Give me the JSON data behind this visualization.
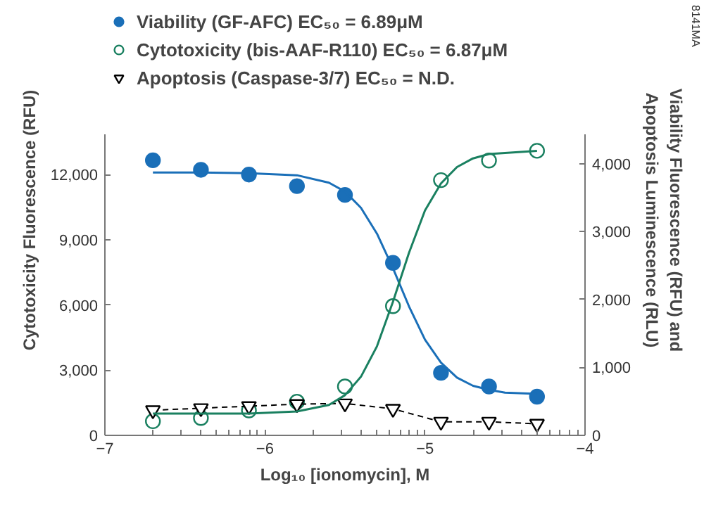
{
  "chart_data": {
    "type": "scatter",
    "xlabel": "Log₁₀ [ionomycin], M",
    "ylabel": "Cytotoxicity Fluorescence (RFU)",
    "y2label": "Viability Fluorescence (RFU) and\nApoptosis Luminescence (RLU)",
    "annotations": [
      "8141MA"
    ],
    "xlim": [
      -7,
      -4
    ],
    "xticks": [
      {
        "value": -7,
        "label": "−7"
      },
      {
        "value": -6.699,
        "label": null
      },
      {
        "value": -6.523,
        "label": null
      },
      {
        "value": -6.398,
        "label": null
      },
      {
        "value": -6.301,
        "label": null
      },
      {
        "value": -6.222,
        "label": null
      },
      {
        "value": -6.155,
        "label": null
      },
      {
        "value": -6.097,
        "label": null
      },
      {
        "value": -6.046,
        "label": null
      },
      {
        "value": -6,
        "label": "−6"
      },
      {
        "value": -5.699,
        "label": null
      },
      {
        "value": -5.523,
        "label": null
      },
      {
        "value": -5.398,
        "label": null
      },
      {
        "value": -5.301,
        "label": null
      },
      {
        "value": -5.222,
        "label": null
      },
      {
        "value": -5.155,
        "label": null
      },
      {
        "value": -5.097,
        "label": null
      },
      {
        "value": -5.046,
        "label": null
      },
      {
        "value": -5,
        "label": "−5"
      },
      {
        "value": -4.699,
        "label": null
      },
      {
        "value": -4.523,
        "label": null
      },
      {
        "value": -4.398,
        "label": null
      },
      {
        "value": -4.301,
        "label": null
      },
      {
        "value": -4.222,
        "label": null
      },
      {
        "value": -4.155,
        "label": null
      },
      {
        "value": -4.097,
        "label": null
      },
      {
        "value": -4.046,
        "label": null
      },
      {
        "value": -4,
        "label": "−4"
      }
    ],
    "ylim": [
      0,
      13850
    ],
    "yticks": [
      0,
      {
        "value": 3000,
        "label": "3,000"
      },
      {
        "value": 6000,
        "label": "6,000"
      },
      {
        "value": 9000,
        "label": "9,000"
      },
      {
        "value": 12000,
        "label": "12,000"
      }
    ],
    "y2lim": [
      0,
      4430
    ],
    "y2ticks": [
      0,
      {
        "value": 1000,
        "label": "1,000"
      },
      {
        "value": 2000,
        "label": "2,000"
      },
      {
        "value": 3000,
        "label": "3,000"
      },
      {
        "value": 4000,
        "label": "4,000"
      }
    ],
    "legend": "top left",
    "grid": false,
    "series": [
      {
        "name": "Viability (GF-AFC) EC₅₀ = 6.89μM",
        "marker": "circle",
        "color": "#1a6fb8",
        "axis": "y2",
        "x": [
          -6.7,
          -6.4,
          -6.1,
          -5.8,
          -5.5,
          -5.2,
          -4.9,
          -4.6,
          -4.3
        ],
        "values": [
          4050,
          3910,
          3840,
          3670,
          3540,
          2540,
          920,
          720,
          570
        ]
      },
      {
        "name": "Cytotoxicity (bis-AAF-R110) EC₅₀ = 6.87μM",
        "marker": "circle",
        "color": "#1a8060",
        "x": [
          -6.7,
          -6.4,
          -6.1,
          -5.8,
          -5.5,
          -5.2,
          -4.9,
          -4.6,
          -4.3
        ],
        "values": [
          650,
          800,
          1150,
          1550,
          2250,
          5950,
          11750,
          12650,
          13100
        ]
      },
      {
        "name": "Apoptosis (Caspase-3/7) EC₅₀ = N.D.",
        "type": "line",
        "marker": "triangle",
        "line_style": "dashed",
        "color": "#000000",
        "axis": "y2",
        "x": [
          -6.7,
          -6.4,
          -6.1,
          -5.8,
          -5.5,
          -5.2,
          -4.9,
          -4.6,
          -4.3
        ],
        "values": [
          370,
          400,
          430,
          460,
          470,
          390,
          200,
          200,
          170
        ]
      },
      {
        "type": "line",
        "color": "#1a6fb8",
        "axis": "y2",
        "x": [
          -6.7,
          -6.4,
          -6.1,
          -5.8,
          -5.6,
          -5.5,
          -5.4,
          -5.3,
          -5.2,
          -5.1,
          -5.0,
          -4.9,
          -4.8,
          -4.7,
          -4.6,
          -4.5,
          -4.3
        ],
        "values": [
          3870,
          3870,
          3860,
          3830,
          3720,
          3590,
          3350,
          2970,
          2460,
          1900,
          1410,
          1070,
          850,
          730,
          670,
          630,
          610
        ]
      },
      {
        "type": "line",
        "color": "#1a8060",
        "x": [
          -6.7,
          -6.4,
          -6.1,
          -5.8,
          -5.6,
          -5.5,
          -5.4,
          -5.3,
          -5.2,
          -5.1,
          -5.0,
          -4.9,
          -4.8,
          -4.7,
          -4.6,
          -4.5,
          -4.3
        ],
        "values": [
          1000,
          1000,
          1000,
          1100,
          1400,
          1850,
          2700,
          4100,
          6150,
          8400,
          10350,
          11600,
          12350,
          12750,
          12950,
          13000,
          13100
        ]
      }
    ]
  }
}
